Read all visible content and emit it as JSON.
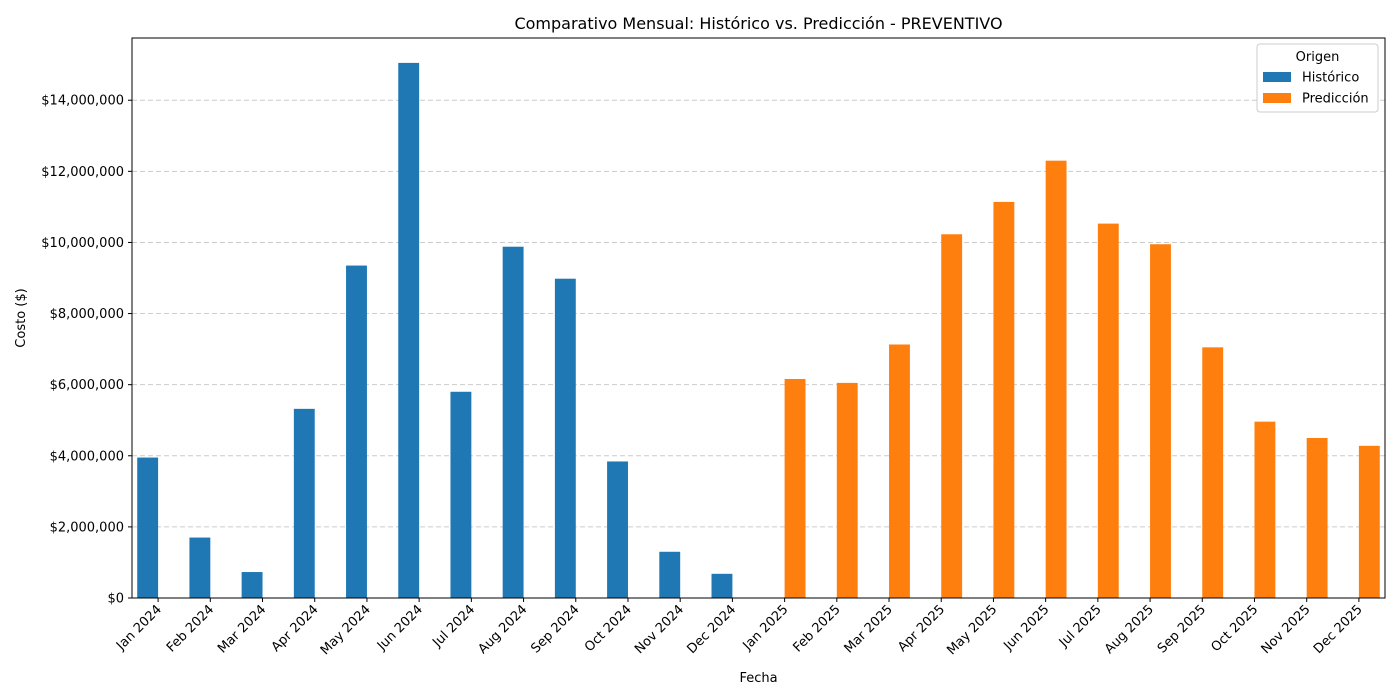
{
  "chart_data": {
    "type": "bar",
    "title": "Comparativo Mensual: Histórico vs. Predicción - PREVENTIVO",
    "xlabel": "Fecha",
    "ylabel": "Costo ($)",
    "ylim": [
      0,
      15750000
    ],
    "yticks": [
      0,
      2000000,
      4000000,
      6000000,
      8000000,
      10000000,
      12000000,
      14000000
    ],
    "ytick_labels": [
      "$0",
      "$2,000,000",
      "$4,000,000",
      "$6,000,000",
      "$8,000,000",
      "$10,000,000",
      "$12,000,000",
      "$14,000,000"
    ],
    "grid": "y-dashed",
    "legend": {
      "title": "Origen",
      "placement": "top-right"
    },
    "categories": [
      "Jan 2024",
      "Feb 2024",
      "Mar 2024",
      "Apr 2024",
      "May 2024",
      "Jun 2024",
      "Jul 2024",
      "Aug 2024",
      "Sep 2024",
      "Oct 2024",
      "Nov 2024",
      "Dec 2024",
      "Jan 2025",
      "Feb 2025",
      "Mar 2025",
      "Apr 2025",
      "May 2025",
      "Jun 2025",
      "Jul 2025",
      "Aug 2025",
      "Sep 2025",
      "Oct 2025",
      "Nov 2025",
      "Dec 2025"
    ],
    "series": [
      {
        "name": "Histórico",
        "color": "#1f77b4",
        "values": [
          3950000,
          1700000,
          730000,
          5320000,
          9350000,
          15050000,
          5800000,
          9880000,
          8980000,
          3840000,
          1300000,
          680000,
          null,
          null,
          null,
          null,
          null,
          null,
          null,
          null,
          null,
          null,
          null,
          null
        ]
      },
      {
        "name": "Predicción",
        "color": "#ff7f0e",
        "values": [
          null,
          null,
          null,
          null,
          null,
          null,
          null,
          null,
          null,
          null,
          null,
          null,
          6160000,
          6050000,
          7130000,
          10230000,
          11140000,
          12300000,
          10530000,
          9950000,
          7050000,
          4960000,
          4500000,
          4280000
        ]
      }
    ]
  }
}
